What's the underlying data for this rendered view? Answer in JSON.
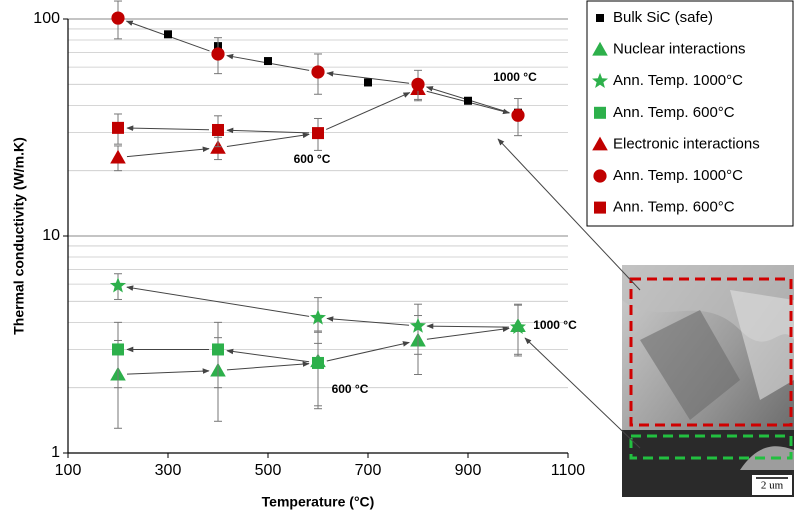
{
  "chart_data": {
    "type": "scatter",
    "x_label": "Temperature (°C)",
    "y_label": "Thermal conductivity (W/m.K)",
    "log_y": true,
    "grid": true,
    "legend": "right",
    "xlim": [
      100,
      1100
    ],
    "xticks": [
      100,
      300,
      500,
      700,
      900,
      1100
    ],
    "ylim": [
      1,
      100
    ],
    "yticks": [
      1,
      10,
      100
    ],
    "y_minor_ticks": [
      2,
      3,
      4,
      5,
      6,
      7,
      8,
      9,
      20,
      30,
      40,
      50,
      60,
      70,
      80,
      90
    ],
    "series": [
      {
        "name": "Bulk SiC (safe)",
        "color": "#000000",
        "marker": "square",
        "x": [
          300,
          400,
          500,
          700,
          900,
          1000
        ],
        "values": [
          85,
          75,
          64,
          51,
          42,
          37
        ]
      },
      {
        "name": "Nuclear interactions",
        "color": "#2db04b",
        "marker": "triangle",
        "x": [
          200,
          400,
          600,
          800,
          1000
        ],
        "values": [
          2.3,
          2.4,
          2.65,
          3.3,
          3.85
        ],
        "errors": [
          1,
          1,
          1,
          1,
          1
        ]
      },
      {
        "name": "Ann. Temp. 1000°C",
        "color": "#2db04b",
        "marker": "star",
        "x": [
          200,
          600,
          800,
          1000
        ],
        "values": [
          5.9,
          4.2,
          3.85,
          3.8
        ],
        "errors": [
          0.8,
          1,
          1,
          1
        ]
      },
      {
        "name": "Ann. Temp. 600°C",
        "color": "#2db04b",
        "marker": "square",
        "x": [
          200,
          400,
          600
        ],
        "values": [
          3,
          3,
          2.6
        ],
        "errors": [
          1,
          1,
          1
        ]
      },
      {
        "name": "Electronic interactions",
        "color": "#c00000",
        "marker": "triangle",
        "x": [
          200,
          400,
          800
        ],
        "values": [
          23,
          25.5,
          47.6
        ],
        "errors": [
          3,
          3,
          5
        ]
      },
      {
        "name": "Ann. Temp. 1000°C",
        "color": "#c00000",
        "marker": "circle",
        "x": [
          200,
          400,
          600,
          800,
          1000
        ],
        "values": [
          101,
          69,
          57,
          50,
          36
        ],
        "errors": [
          20,
          13,
          12,
          8,
          7
        ]
      },
      {
        "name": "Ann. Temp. 600°C",
        "color": "#c00000",
        "marker": "square",
        "x": [
          200,
          400,
          600
        ],
        "values": [
          31.5,
          30.8,
          29.8
        ],
        "errors": [
          5,
          5,
          5
        ]
      }
    ],
    "annotations": [
      "1000 °C",
      "600 °C",
      "1000 °C",
      "600 °C"
    ],
    "inset_scale_label": "2 um"
  }
}
